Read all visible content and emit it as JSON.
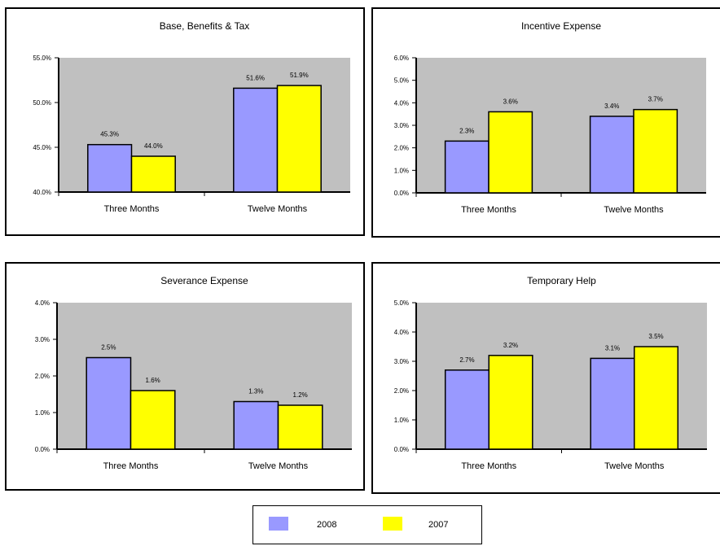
{
  "colors": {
    "2008": "#9999ff",
    "2007": "#ffff00",
    "plot_bg": "#c0c0c0"
  },
  "legend": {
    "items": [
      {
        "label": "2008",
        "color": "#9999ff"
      },
      {
        "label": "2007",
        "color": "#ffff00"
      }
    ]
  },
  "chart_data": [
    {
      "type": "bar",
      "title": "Base, Benefits & Tax",
      "categories": [
        "Three Months",
        "Twelve Months"
      ],
      "series": [
        {
          "name": "2008",
          "values": [
            45.3,
            51.6
          ],
          "labels": [
            "45.3%",
            "51.6%"
          ]
        },
        {
          "name": "2007",
          "values": [
            44.0,
            51.9
          ],
          "labels": [
            "44.0%",
            "51.9%"
          ]
        }
      ],
      "ylim": [
        40,
        55
      ],
      "yticks": [
        40,
        45,
        50,
        55
      ],
      "ytick_labels": [
        "40.0%",
        "45.0%",
        "50.0%",
        "55.0%"
      ],
      "grid": false,
      "legend": "bottom"
    },
    {
      "type": "bar",
      "title": "Incentive Expense",
      "categories": [
        "Three Months",
        "Twelve Months"
      ],
      "series": [
        {
          "name": "2008",
          "values": [
            2.3,
            3.4
          ],
          "labels": [
            "2.3%",
            "3.4%"
          ]
        },
        {
          "name": "2007",
          "values": [
            3.6,
            3.7
          ],
          "labels": [
            "3.6%",
            "3.7%"
          ]
        }
      ],
      "ylim": [
        0,
        6
      ],
      "yticks": [
        0,
        1,
        2,
        3,
        4,
        5,
        6
      ],
      "ytick_labels": [
        "0.0%",
        "1.0%",
        "2.0%",
        "3.0%",
        "4.0%",
        "5.0%",
        "6.0%"
      ],
      "grid": false,
      "legend": "bottom"
    },
    {
      "type": "bar",
      "title": "Severance Expense",
      "categories": [
        "Three Months",
        "Twelve Months"
      ],
      "series": [
        {
          "name": "2008",
          "values": [
            2.5,
            1.3
          ],
          "labels": [
            "2.5%",
            "1.3%"
          ]
        },
        {
          "name": "2007",
          "values": [
            1.6,
            1.2
          ],
          "labels": [
            "1.6%",
            "1.2%"
          ]
        }
      ],
      "ylim": [
        0,
        4
      ],
      "yticks": [
        0,
        1,
        2,
        3,
        4
      ],
      "ytick_labels": [
        "0.0%",
        "1.0%",
        "2.0%",
        "3.0%",
        "4.0%"
      ],
      "grid": false,
      "legend": "bottom"
    },
    {
      "type": "bar",
      "title": "Temporary Help",
      "categories": [
        "Three Months",
        "Twelve Months"
      ],
      "series": [
        {
          "name": "2008",
          "values": [
            2.7,
            3.1
          ],
          "labels": [
            "2.7%",
            "3.1%"
          ]
        },
        {
          "name": "2007",
          "values": [
            3.2,
            3.5
          ],
          "labels": [
            "3.2%",
            "3.5%"
          ]
        }
      ],
      "ylim": [
        0,
        5
      ],
      "yticks": [
        0,
        1,
        2,
        3,
        4,
        5
      ],
      "ytick_labels": [
        "0.0%",
        "1.0%",
        "2.0%",
        "3.0%",
        "4.0%",
        "5.0%"
      ],
      "grid": false,
      "legend": "bottom"
    }
  ]
}
